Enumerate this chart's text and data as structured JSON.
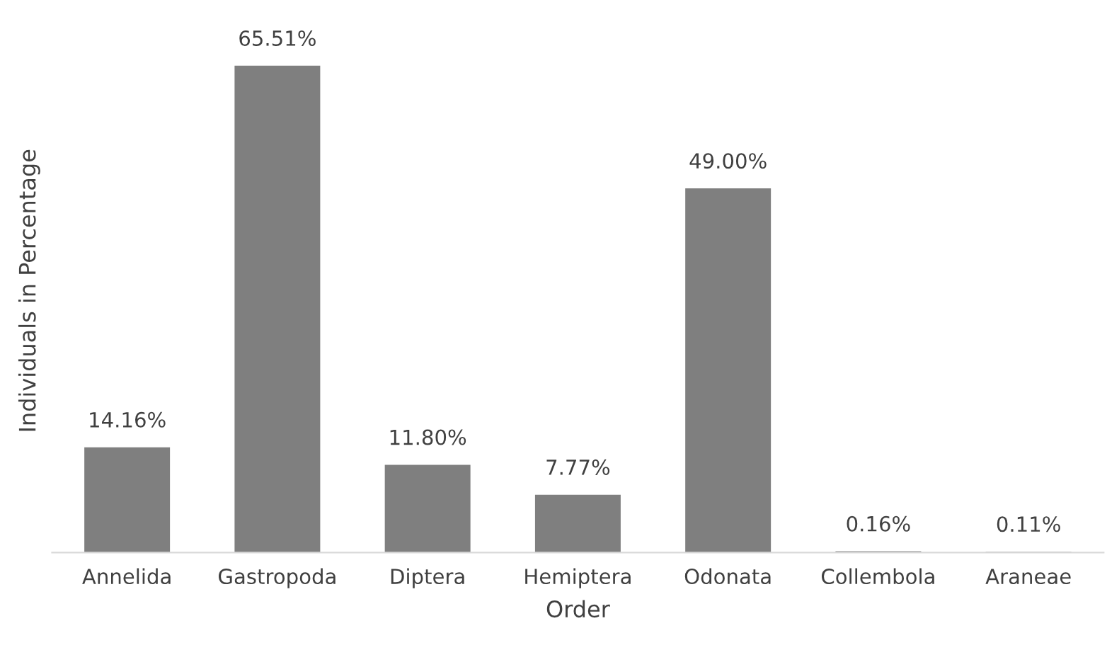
{
  "chart_data": {
    "type": "bar",
    "xlabel": "Order",
    "ylabel": "Individuals in Percentage",
    "categories": [
      "Annelida",
      "Gastropoda",
      "Diptera",
      "Hemiptera",
      "Odonata",
      "Collembola",
      "Araneae"
    ],
    "values": [
      14.16,
      65.51,
      11.8,
      7.77,
      49.0,
      0.16,
      0.11
    ],
    "value_labels": [
      "14.16%",
      "65.51%",
      "11.80%",
      "7.77%",
      "49.00%",
      "0.16%",
      "0.11%"
    ],
    "color": "#7f7f7f",
    "grid": false,
    "legend": false
  }
}
